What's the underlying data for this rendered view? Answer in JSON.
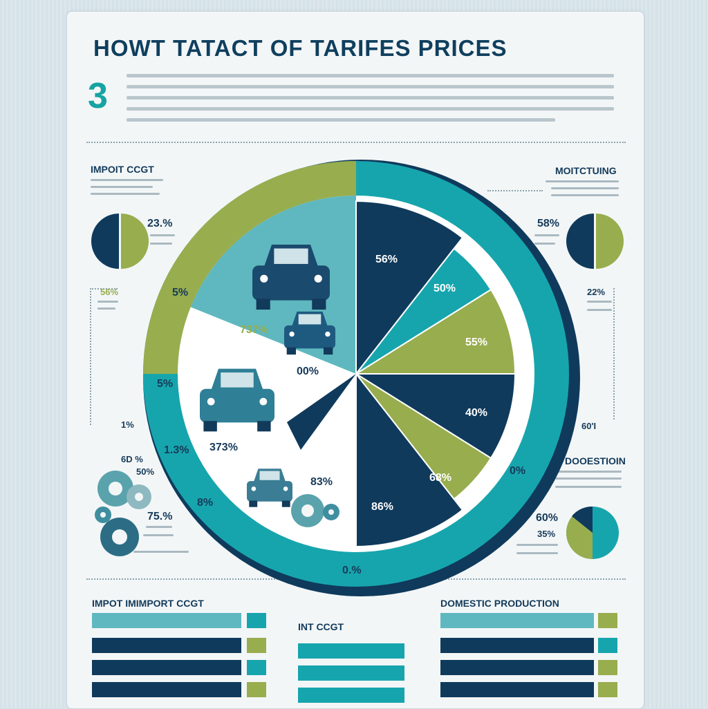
{
  "title": "HOWT  TATACT OF TARIFES PRICES",
  "big_number": "3",
  "colors": {
    "navy": "#0f3a5c",
    "teal": "#17a5ad",
    "olive": "#98ad4e",
    "light_teal": "#5fb8bf",
    "bg": "#f3f6f7"
  },
  "labels": {
    "import_cost": "IMPOIT CCGT",
    "manufacturing": "MOITCTUING",
    "domestic": "DOOESTIOIN",
    "bottom_import": "IMPOT IMIMPORT CCGT",
    "bottom_middle": "INT CCGT",
    "bottom_domestic": "DOMESTIC PRODUCTION"
  },
  "left_stats": {
    "donut_pct": "23.%",
    "box_pct": "56%",
    "box_edge_pct": "1%",
    "pct_a": "6D %",
    "pct_b": "50%",
    "pct_c": "75.%"
  },
  "right_stats": {
    "donut_pct": "58%",
    "box_pct": "22%",
    "edge_pct": "60'I",
    "bottom_pct_a": "60%",
    "bottom_pct_b": "35%"
  },
  "ring_labels": {
    "a": "5%",
    "b": "5%",
    "c": "1.3%",
    "d": "8%",
    "e": "0%",
    "f": "0.%"
  },
  "inner_labels": {
    "car_a": "737%",
    "car_b": "00%",
    "car_c": "373%",
    "car_d": "83%"
  },
  "right_slice_labels": [
    "56%",
    "50%",
    "55%",
    "40%",
    "68%",
    "86%"
  ],
  "chart_data": {
    "type": "pie",
    "title": "HOWT  TATACT OF TARIFES PRICES",
    "series": [
      {
        "values": [
          56,
          50,
          55,
          40,
          68,
          86
        ],
        "labels": [
          "56%",
          "50%",
          "55%",
          "40%",
          "68%",
          "86%"
        ]
      }
    ],
    "donuts": [
      {
        "label": "IMPOIT CCGT",
        "value": "23.%"
      },
      {
        "label": "MOITCTUING",
        "value": "58%"
      },
      {
        "label": "DOOESTIOIN",
        "value": "60%"
      }
    ],
    "bars": {
      "import": [
        1,
        1,
        1,
        1
      ],
      "middle": [
        1,
        1,
        1,
        1
      ],
      "domestic": [
        1,
        1,
        1,
        1
      ]
    }
  }
}
